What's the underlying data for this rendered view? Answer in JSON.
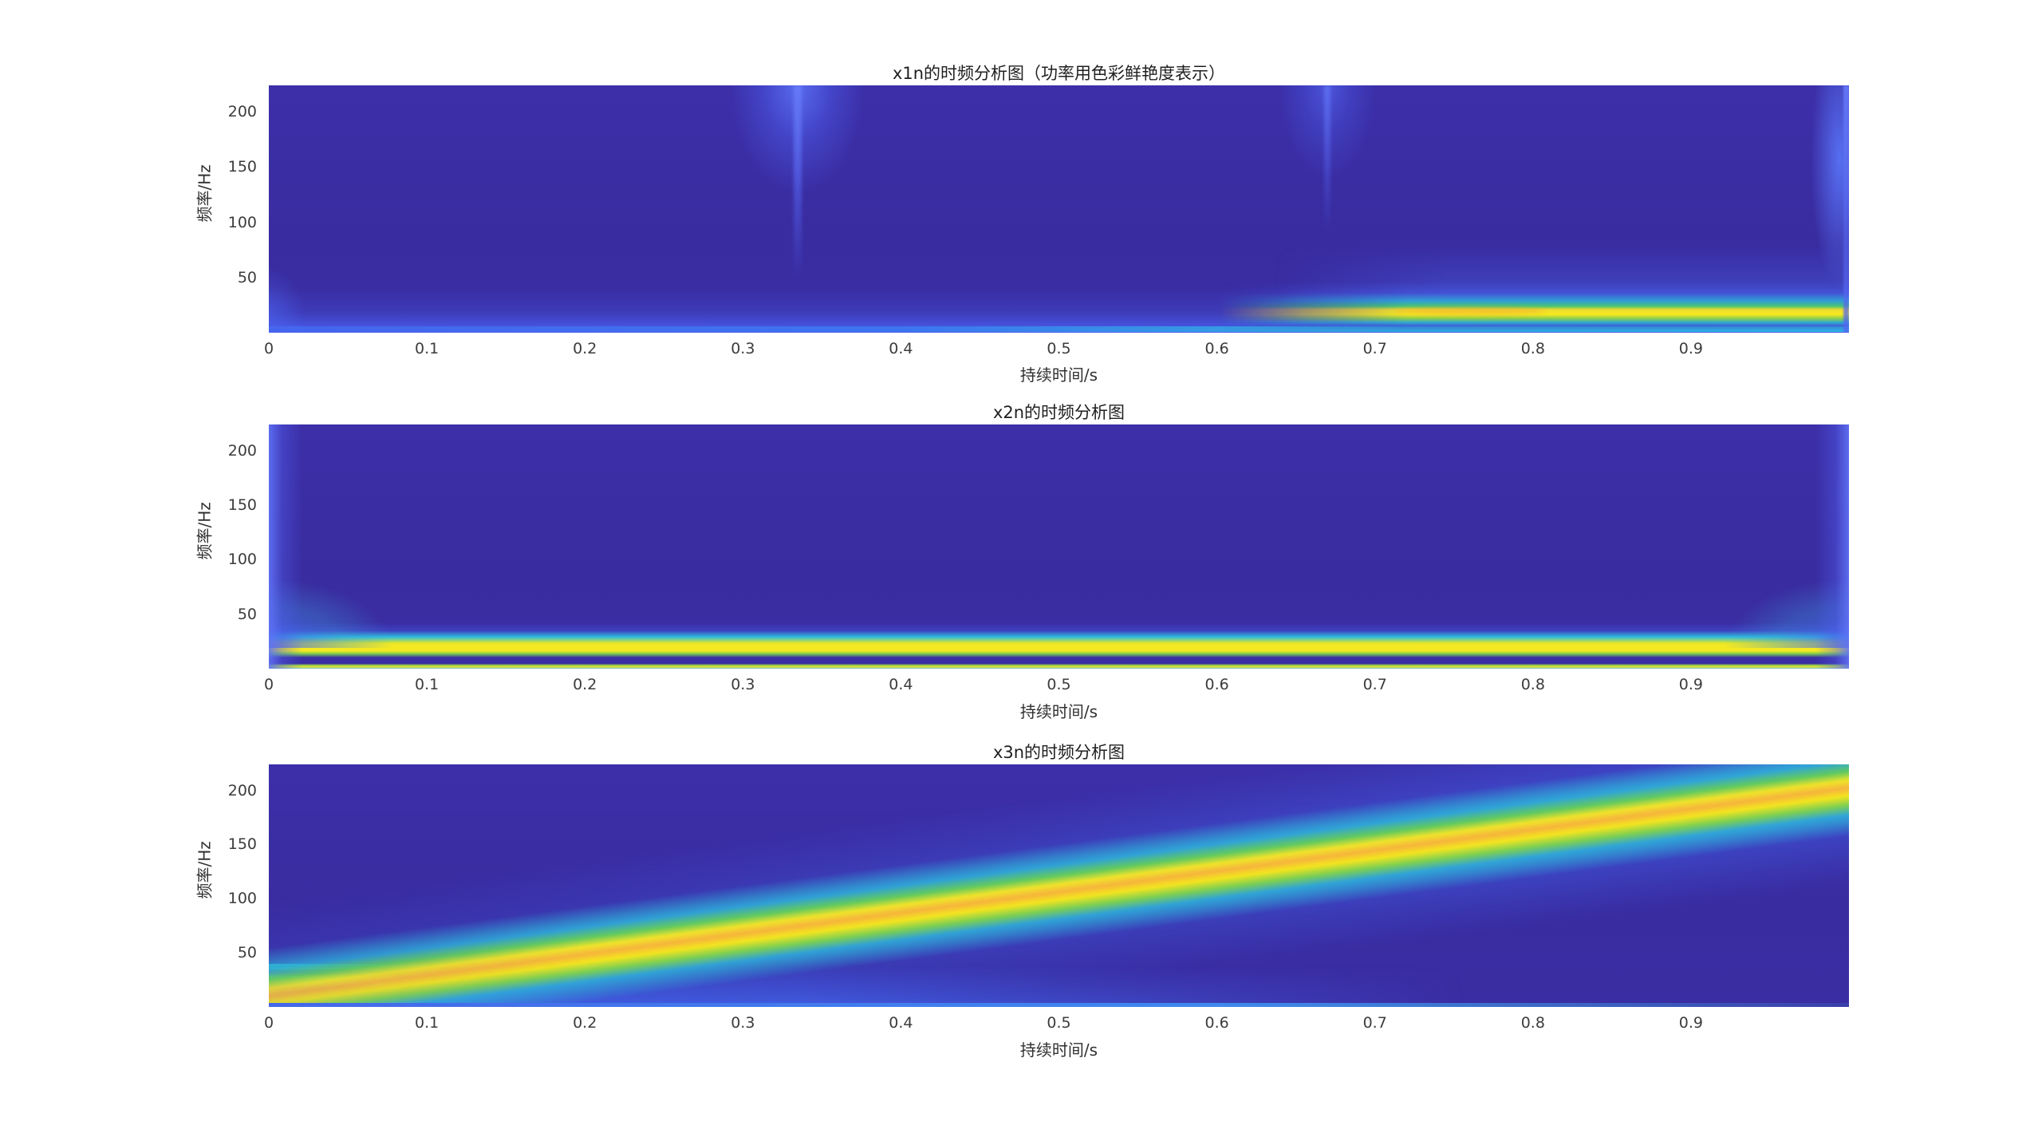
{
  "figure": {
    "background": "#ffffff"
  },
  "palette": {
    "colormap": "parula",
    "background_dark": "#3a2da3",
    "blue": "#4468ea",
    "cyan": "#2fc0dc",
    "green": "#6cca55",
    "yellow": "#f4e822",
    "orange": "#f6b43c",
    "text_title": "#1f1f1f",
    "text_tick": "#3c3c3c"
  },
  "axes": {
    "xlim": [
      0,
      1.0
    ],
    "ylim": [
      0,
      224
    ],
    "xtick_labels": [
      "0",
      "0.1",
      "0.2",
      "0.3",
      "0.4",
      "0.5",
      "0.6",
      "0.7",
      "0.8",
      "0.9"
    ],
    "xtick_values": [
      0,
      0.1,
      0.2,
      0.3,
      0.4,
      0.5,
      0.6,
      0.7,
      0.8,
      0.9
    ],
    "ytick_labels": [
      "50",
      "100",
      "150",
      "200"
    ],
    "ytick_values": [
      50,
      100,
      150,
      200
    ]
  },
  "plots": [
    {
      "id": "x1n",
      "title": "x1n的时频分析图（功率用色彩鲜艳度表示）",
      "xlabel": "持续时间/s",
      "ylabel": "频率/Hz"
    },
    {
      "id": "x2n",
      "title": "x2n的时频分析图",
      "xlabel": "持续时间/s",
      "ylabel": "频率/Hz"
    },
    {
      "id": "x3n",
      "title": "x3n的时频分析图",
      "xlabel": "持续时间/s",
      "ylabel": "频率/Hz"
    }
  ],
  "chart_data": [
    {
      "type": "heatmap",
      "subplot": 1,
      "title": "x1n的时频分析图（功率用色彩鲜艳度表示）",
      "xlabel": "持续时间/s",
      "ylabel": "频率/Hz",
      "xlim": [
        0,
        1.0
      ],
      "ylim": [
        0,
        224
      ],
      "xticks": [
        0,
        0.1,
        0.2,
        0.3,
        0.4,
        0.5,
        0.6,
        0.7,
        0.8,
        0.9
      ],
      "yticks": [
        50,
        100,
        150,
        200
      ],
      "colormap": "parula",
      "background_power": "low (dark blue-purple)",
      "features": [
        {
          "feature": "horizontal ridge",
          "freq_hz": 20,
          "t_start": 0.63,
          "t_end": 1.0,
          "power": "high (yellow core, green/cyan skirt)"
        },
        {
          "feature": "horizontal baseline ridge",
          "freq_hz": 3,
          "t_start": 0.0,
          "t_end": 1.0,
          "power": "medium (blue fading to cyan toward t=1)"
        },
        {
          "feature": "vertical transient flare",
          "t": 0.335,
          "freq_span_hz": [
            0,
            224
          ],
          "power": "light blue, widest at top"
        },
        {
          "feature": "vertical transient flare",
          "t": 0.67,
          "freq_span_hz": [
            0,
            224
          ],
          "power": "weaker light blue"
        },
        {
          "feature": "vertical edge flare",
          "t": 1.0,
          "freq_span_hz": [
            0,
            224
          ],
          "power": "light blue"
        }
      ]
    },
    {
      "type": "heatmap",
      "subplot": 2,
      "title": "x2n的时频分析图",
      "xlabel": "持续时间/s",
      "ylabel": "频率/Hz",
      "xlim": [
        0,
        1.0
      ],
      "ylim": [
        0,
        224
      ],
      "xticks": [
        0,
        0.1,
        0.2,
        0.3,
        0.4,
        0.5,
        0.6,
        0.7,
        0.8,
        0.9
      ],
      "yticks": [
        50,
        100,
        150,
        200
      ],
      "colormap": "parula",
      "background_power": "low (dark blue-purple)",
      "features": [
        {
          "feature": "horizontal ridge",
          "freq_hz": 20,
          "t_start": 0.0,
          "t_end": 1.0,
          "power": "high (yellow core)"
        },
        {
          "feature": "horizontal sidelobe ridge",
          "freq_hz": 28,
          "t_start": 0.0,
          "t_end": 1.0,
          "power": "medium (cyan)"
        },
        {
          "feature": "horizontal sidelobe ridge",
          "freq_hz": 2,
          "t_start": 0.0,
          "t_end": 1.0,
          "power": "medium (yellow-green thin line at bottom edge)"
        },
        {
          "feature": "vertical edge flare with band fan-out",
          "t": 0.0,
          "freq_span_hz": [
            0,
            224
          ]
        },
        {
          "feature": "vertical edge flare with band fan-out",
          "t": 1.0,
          "freq_span_hz": [
            0,
            224
          ]
        }
      ]
    },
    {
      "type": "heatmap",
      "subplot": 3,
      "title": "x3n的时频分析图",
      "xlabel": "持续时间/s",
      "ylabel": "频率/Hz",
      "xlim": [
        0,
        1.0
      ],
      "ylim": [
        0,
        224
      ],
      "xticks": [
        0,
        0.1,
        0.2,
        0.3,
        0.4,
        0.5,
        0.6,
        0.7,
        0.8,
        0.9
      ],
      "yticks": [
        50,
        100,
        150,
        200
      ],
      "colormap": "parula",
      "background_power": "low (dark blue-purple)",
      "features": [
        {
          "feature": "linear chirp ridge",
          "freq_start_hz": 8,
          "freq_end_hz": 205,
          "t_start": 0.0,
          "t_end": 1.0,
          "power": "high (yellow core with orange tinge, green/cyan skirt, widening and brightening toward t=1)"
        },
        {
          "feature": "low-frequency sidelobe stripes",
          "freq_hz_range": [
            2,
            18
          ],
          "t_start": 0.0,
          "t_end": 0.15,
          "power": "medium (teal/green)"
        },
        {
          "feature": "low-frequency bleed below chirp",
          "freq_hz_range": [
            0,
            10
          ],
          "t_start": 0.0,
          "t_end": 0.7,
          "power": "medium (light blue)"
        }
      ]
    }
  ]
}
